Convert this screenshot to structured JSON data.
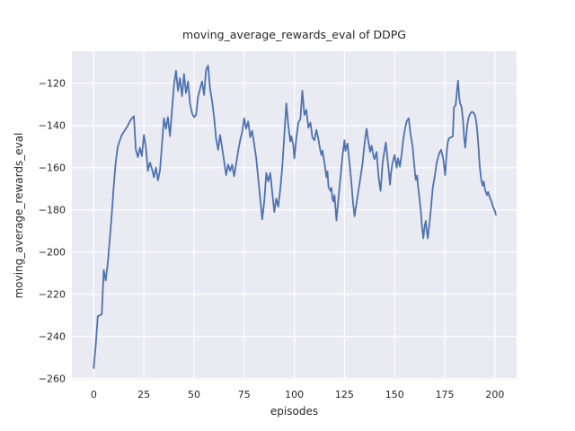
{
  "title": "moving_average_rewards_eval of DDPG",
  "chart_data": {
    "type": "line",
    "title": "moving_average_rewards_eval of DDPG",
    "xlabel": "episodes",
    "ylabel": "moving_average_rewards_eval",
    "x_ticks": [
      0,
      25,
      50,
      75,
      100,
      125,
      150,
      175,
      200
    ],
    "y_ticks": [
      -260,
      -240,
      -220,
      -200,
      -180,
      -160,
      -140,
      -120
    ],
    "xlim": [
      -10.9,
      210.8
    ],
    "ylim": [
      -260.6,
      -104.7
    ],
    "grid": true,
    "legend_position": "none",
    "style": "seaborn-darkgrid",
    "colors": {
      "line": "#4c72b0",
      "axes_background": "#eaeaf2",
      "grid": "#ffffff",
      "text": "#262626",
      "figure_background": "#ffffff"
    },
    "series": [
      {
        "name": "moving_average_rewards_eval",
        "points": [
          [
            0,
            -255
          ],
          [
            1,
            -244
          ],
          [
            2,
            -230.5
          ],
          [
            3,
            -230
          ],
          [
            4,
            -229.5
          ],
          [
            5,
            -208.5
          ],
          [
            6,
            -213.5
          ],
          [
            7,
            -205
          ],
          [
            8,
            -194
          ],
          [
            9,
            -182
          ],
          [
            10,
            -168
          ],
          [
            11,
            -157
          ],
          [
            12,
            -150
          ],
          [
            13,
            -147
          ],
          [
            14,
            -144.5
          ],
          [
            15,
            -143
          ],
          [
            16,
            -141.5
          ],
          [
            17,
            -140
          ],
          [
            18,
            -138
          ],
          [
            19,
            -136.5
          ],
          [
            20,
            -135.5
          ],
          [
            21,
            -151.5
          ],
          [
            22,
            -155
          ],
          [
            23,
            -150.5
          ],
          [
            24,
            -154.5
          ],
          [
            25,
            -144.5
          ],
          [
            26,
            -150.5
          ],
          [
            27,
            -161.5
          ],
          [
            28,
            -157.5
          ],
          [
            29,
            -160.5
          ],
          [
            30,
            -164.5
          ],
          [
            31,
            -160
          ],
          [
            32,
            -166
          ],
          [
            33,
            -161.5
          ],
          [
            34,
            -149
          ],
          [
            35,
            -136.5
          ],
          [
            36,
            -141.5
          ],
          [
            37,
            -136
          ],
          [
            38,
            -145
          ],
          [
            39,
            -133
          ],
          [
            40,
            -121
          ],
          [
            41,
            -114
          ],
          [
            42,
            -123.5
          ],
          [
            43,
            -117.5
          ],
          [
            44,
            -126
          ],
          [
            45,
            -115.5
          ],
          [
            46,
            -124.5
          ],
          [
            47,
            -119
          ],
          [
            48,
            -129.5
          ],
          [
            49,
            -134
          ],
          [
            50,
            -136
          ],
          [
            51,
            -135
          ],
          [
            52,
            -126.5
          ],
          [
            53,
            -122.5
          ],
          [
            54,
            -119
          ],
          [
            55,
            -125.5
          ],
          [
            56,
            -113.5
          ],
          [
            57,
            -111.5
          ],
          [
            58,
            -122.5
          ],
          [
            59,
            -128.5
          ],
          [
            60,
            -136
          ],
          [
            61,
            -146
          ],
          [
            62,
            -151.5
          ],
          [
            63,
            -144.5
          ],
          [
            64,
            -150.5
          ],
          [
            65,
            -157
          ],
          [
            66,
            -163.5
          ],
          [
            67,
            -158.5
          ],
          [
            68,
            -161.5
          ],
          [
            69,
            -158.5
          ],
          [
            70,
            -164
          ],
          [
            71,
            -158
          ],
          [
            72,
            -152
          ],
          [
            73,
            -147
          ],
          [
            74,
            -143
          ],
          [
            75,
            -136.5
          ],
          [
            76,
            -141.5
          ],
          [
            77,
            -138
          ],
          [
            78,
            -145.5
          ],
          [
            79,
            -142.5
          ],
          [
            80,
            -149
          ],
          [
            81,
            -155.5
          ],
          [
            82,
            -165
          ],
          [
            83,
            -175
          ],
          [
            84,
            -184.5
          ],
          [
            85,
            -176
          ],
          [
            86,
            -162.5
          ],
          [
            87,
            -166.5
          ],
          [
            88,
            -162.5
          ],
          [
            89,
            -172
          ],
          [
            90,
            -181
          ],
          [
            91,
            -174.5
          ],
          [
            92,
            -178.5
          ],
          [
            93,
            -170
          ],
          [
            94,
            -159.5
          ],
          [
            95,
            -145
          ],
          [
            96,
            -129.5
          ],
          [
            97,
            -140
          ],
          [
            98,
            -147.5
          ],
          [
            98.5,
            -145
          ],
          [
            99.5,
            -149.5
          ],
          [
            100,
            -155.5
          ],
          [
            101,
            -146
          ],
          [
            102,
            -138.5
          ],
          [
            103,
            -137
          ],
          [
            104,
            -123.5
          ],
          [
            105,
            -135
          ],
          [
            106,
            -132.5
          ],
          [
            107,
            -141
          ],
          [
            108,
            -138.5
          ],
          [
            109,
            -145.5
          ],
          [
            110,
            -147
          ],
          [
            111,
            -142
          ],
          [
            112,
            -146.5
          ],
          [
            113,
            -152
          ],
          [
            113.5,
            -154
          ],
          [
            114,
            -151.8
          ],
          [
            115,
            -157.5
          ],
          [
            116,
            -164.5
          ],
          [
            116.5,
            -161.7
          ],
          [
            117,
            -169
          ],
          [
            118,
            -171
          ],
          [
            118.5,
            -169.5
          ],
          [
            119,
            -174.5
          ],
          [
            119.5,
            -176
          ],
          [
            120,
            -173
          ],
          [
            121,
            -185
          ],
          [
            122,
            -174.5
          ],
          [
            123,
            -164.5
          ],
          [
            124,
            -154.5
          ],
          [
            125,
            -147
          ],
          [
            125.5,
            -152
          ],
          [
            126.5,
            -148.5
          ],
          [
            127.5,
            -157.5
          ],
          [
            128.5,
            -167.5
          ],
          [
            129.2,
            -176
          ],
          [
            130,
            -183
          ],
          [
            131,
            -177
          ],
          [
            132,
            -170.5
          ],
          [
            133,
            -164.5
          ],
          [
            134,
            -158
          ],
          [
            135,
            -148.5
          ],
          [
            136,
            -141.5
          ],
          [
            137,
            -148
          ],
          [
            137.8,
            -152.5
          ],
          [
            138.5,
            -149.5
          ],
          [
            139.5,
            -154.5
          ],
          [
            140,
            -156
          ],
          [
            141,
            -152.5
          ],
          [
            142,
            -164.5
          ],
          [
            143,
            -171
          ],
          [
            144,
            -157.5
          ],
          [
            145,
            -151.5
          ],
          [
            145.6,
            -148
          ],
          [
            146.2,
            -153.5
          ],
          [
            147,
            -161
          ],
          [
            147.7,
            -168
          ],
          [
            148.2,
            -162.5
          ],
          [
            149,
            -157.5
          ],
          [
            150,
            -154
          ],
          [
            151,
            -160
          ],
          [
            151.7,
            -155.5
          ],
          [
            152.6,
            -159.5
          ],
          [
            153.5,
            -153.5
          ],
          [
            154.2,
            -147.5
          ],
          [
            155,
            -142.5
          ],
          [
            156,
            -138
          ],
          [
            157,
            -136.5
          ],
          [
            158,
            -144.5
          ],
          [
            159,
            -150
          ],
          [
            159.5,
            -156
          ],
          [
            160.2,
            -163
          ],
          [
            160.6,
            -165.8
          ],
          [
            161.2,
            -163.7
          ],
          [
            161.6,
            -168
          ],
          [
            162.4,
            -174.5
          ],
          [
            163.1,
            -181
          ],
          [
            163.6,
            -187.5
          ],
          [
            164.3,
            -193.5
          ],
          [
            165,
            -187.5
          ],
          [
            165.5,
            -185.2
          ],
          [
            166.1,
            -190.5
          ],
          [
            166.5,
            -193.5
          ],
          [
            167.3,
            -187
          ],
          [
            168,
            -180.5
          ],
          [
            169,
            -169.5
          ],
          [
            170,
            -164
          ],
          [
            171,
            -157.5
          ],
          [
            172.3,
            -153
          ],
          [
            173.2,
            -151.5
          ],
          [
            174.2,
            -155.5
          ],
          [
            175.2,
            -163.5
          ],
          [
            176,
            -152
          ],
          [
            176.5,
            -148
          ],
          [
            177,
            -146.2
          ],
          [
            178,
            -145.5
          ],
          [
            179,
            -145.2
          ],
          [
            179.6,
            -131.3
          ],
          [
            180.4,
            -130.5
          ],
          [
            181.6,
            -118.6
          ],
          [
            182.2,
            -126.4
          ],
          [
            182.6,
            -129.2
          ],
          [
            183.4,
            -131.3
          ],
          [
            184.1,
            -137.7
          ],
          [
            184.7,
            -146.2
          ],
          [
            185.2,
            -150.4
          ],
          [
            186.1,
            -140.5
          ],
          [
            186.7,
            -137
          ],
          [
            187.5,
            -134.5
          ],
          [
            188.5,
            -133.5
          ],
          [
            189.5,
            -134
          ],
          [
            190.2,
            -135.5
          ],
          [
            191,
            -140.5
          ],
          [
            191.7,
            -149
          ],
          [
            192.4,
            -159
          ],
          [
            193.2,
            -166
          ],
          [
            193.9,
            -168.5
          ],
          [
            194.4,
            -166.5
          ],
          [
            195.1,
            -170.5
          ],
          [
            196,
            -173
          ],
          [
            196.6,
            -171.5
          ],
          [
            197.6,
            -174.5
          ],
          [
            198.3,
            -176
          ],
          [
            199.1,
            -178.7
          ],
          [
            199.8,
            -180
          ],
          [
            200.5,
            -182.3
          ]
        ]
      }
    ]
  }
}
